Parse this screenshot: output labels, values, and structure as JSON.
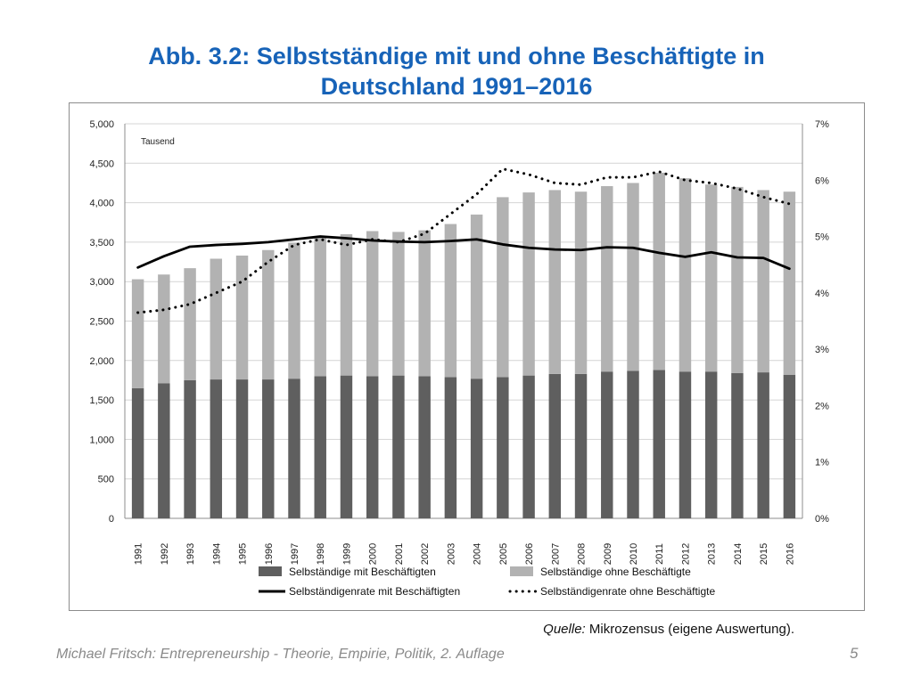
{
  "title": {
    "line1": "Abb. 3.2: Selbstständige mit und ohne Beschäftigte in",
    "line2": "Deutschland 1991–2016"
  },
  "source": {
    "label": "Quelle:",
    "text": "Mikrozensus (eigene Auswertung)."
  },
  "footer": {
    "text": "Michael Fritsch: Entrepreneurship - Theorie, Empirie, Politik, 2. Auflage",
    "page": "5"
  },
  "colors": {
    "title": "#1763b8",
    "bar_dark": "#5f5f5f",
    "bar_light": "#b2b2b2",
    "line": "#000000"
  },
  "chart_data": {
    "type": "bar",
    "stacked": true,
    "unit_label": "Tausend",
    "categories": [
      "1991",
      "1992",
      "1993",
      "1994",
      "1995",
      "1996",
      "1997",
      "1998",
      "1999",
      "2000",
      "2001",
      "2002",
      "2003",
      "2004",
      "2005",
      "2006",
      "2007",
      "2008",
      "2009",
      "2010",
      "2011",
      "2012",
      "2013",
      "2014",
      "2015",
      "2016"
    ],
    "series": [
      {
        "name": "Selbständige mit Beschäftigten",
        "type": "bar",
        "axis": "left",
        "values": [
          1650,
          1710,
          1750,
          1760,
          1760,
          1760,
          1770,
          1800,
          1810,
          1800,
          1810,
          1800,
          1790,
          1770,
          1790,
          1810,
          1830,
          1830,
          1860,
          1870,
          1880,
          1860,
          1860,
          1840,
          1850,
          1820
        ]
      },
      {
        "name": "Selbständige ohne Beschäftigte",
        "type": "bar",
        "axis": "left",
        "values": [
          1380,
          1380,
          1420,
          1530,
          1570,
          1640,
          1720,
          1770,
          1790,
          1840,
          1820,
          1850,
          1940,
          2080,
          2280,
          2320,
          2330,
          2310,
          2350,
          2380,
          2500,
          2450,
          2370,
          2360,
          2310,
          2320
        ]
      },
      {
        "name": "Selbständigenrate mit Beschäftigten",
        "type": "line",
        "axis": "right",
        "style": "solid",
        "values": [
          4.45,
          4.65,
          4.82,
          4.85,
          4.87,
          4.9,
          4.95,
          5.0,
          4.97,
          4.93,
          4.91,
          4.9,
          4.92,
          4.95,
          4.86,
          4.8,
          4.77,
          4.76,
          4.81,
          4.8,
          4.71,
          4.64,
          4.72,
          4.63,
          4.62,
          4.43
        ]
      },
      {
        "name": "Selbständigenrate ohne Beschäftigte",
        "type": "line",
        "axis": "right",
        "style": "dotted",
        "values": [
          3.65,
          3.7,
          3.8,
          4.0,
          4.2,
          4.55,
          4.85,
          4.95,
          4.85,
          4.95,
          4.9,
          5.05,
          5.4,
          5.75,
          6.2,
          6.1,
          5.95,
          5.92,
          6.05,
          6.05,
          6.15,
          6.0,
          5.95,
          5.85,
          5.7,
          5.58
        ]
      }
    ],
    "y_left": {
      "range": [
        0,
        5000
      ],
      "ticks": [
        "0",
        "500",
        "1,000",
        "1,500",
        "2,000",
        "2,500",
        "3,000",
        "3,500",
        "4,000",
        "4,500",
        "5,000"
      ]
    },
    "y_right": {
      "range": [
        0,
        7
      ],
      "ticks": [
        "0%",
        "1%",
        "2%",
        "3%",
        "4%",
        "5%",
        "6%",
        "7%"
      ]
    },
    "grid": true,
    "legend": {
      "position": "bottom",
      "items": [
        {
          "label": "Selbständige mit Beschäftigten",
          "kind": "bar_dark"
        },
        {
          "label": "Selbständige ohne Beschäftigte",
          "kind": "bar_light"
        },
        {
          "label": "Selbständigenrate mit Beschäftigten",
          "kind": "line_solid"
        },
        {
          "label": "Selbständigenrate ohne Beschäftigte",
          "kind": "line_dotted"
        }
      ]
    }
  }
}
